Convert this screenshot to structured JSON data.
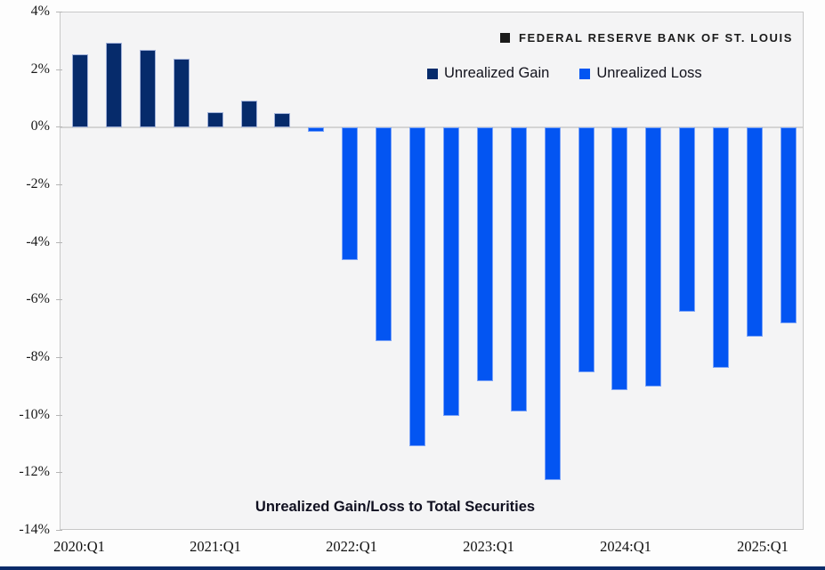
{
  "header": {
    "brand": "FEDERAL RESERVE BANK OF ST. LOUIS"
  },
  "legend": [
    {
      "label": "Unrealized Gain",
      "color": "#062b6b",
      "edge": "#9fb0d8"
    },
    {
      "label": "Unrealized Loss",
      "color": "#0355f2",
      "edge": "#7aa3f8"
    }
  ],
  "chart_data": {
    "type": "bar",
    "title": "Unrealized Gain/Loss to Total Securities",
    "unit": "%",
    "categories": [
      "2020:Q1",
      "2020:Q2",
      "2020:Q3",
      "2020:Q4",
      "2021:Q1",
      "2021:Q2",
      "2021:Q3",
      "2021:Q4",
      "2022:Q1",
      "2022:Q2",
      "2022:Q3",
      "2022:Q4",
      "2023:Q1",
      "2023:Q2",
      "2023:Q3",
      "2023:Q4",
      "2024:Q1",
      "2024:Q2",
      "2024:Q3",
      "2024:Q4",
      "2025:Q1",
      "2025:Q2"
    ],
    "values": [
      2.55,
      2.95,
      2.7,
      2.4,
      0.55,
      0.95,
      0.5,
      -0.15,
      -4.6,
      -7.4,
      -11.05,
      -10.0,
      -8.8,
      -9.85,
      -12.25,
      -8.5,
      -9.1,
      -9.0,
      -6.4,
      -8.35,
      -7.25,
      -6.8
    ],
    "series_rule": "value >= 0 -> Unrealized Gain (navy); value < 0 -> Unrealized Loss (blue)",
    "x_tick_labels": [
      "2020:Q1",
      "2021:Q1",
      "2022:Q1",
      "2023:Q1",
      "2024:Q1",
      "2025:Q1"
    ],
    "y_tick_labels": [
      "4%",
      "2%",
      "0%",
      "-2%",
      "-4%",
      "-6%",
      "-8%",
      "-10%",
      "-12%",
      "-14%"
    ],
    "ylim": [
      -14,
      4
    ],
    "grid": "zero-line-only",
    "legend_position": "top-right-inside"
  },
  "colors": {
    "plot_background": "#f4f4f5",
    "page_background": "#fdfdfd",
    "plot_border": "#c8c8c8",
    "zero_line": "#d4d4d4",
    "footer_strip": "#0a2b69"
  }
}
